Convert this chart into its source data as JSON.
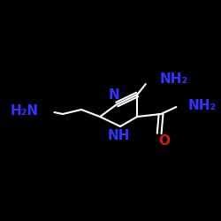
{
  "background_color": "#000000",
  "bond_color": "#ffffff",
  "text_color_blue": "#3333ff",
  "text_color_red": "#cc2200",
  "figsize": [
    2.5,
    2.5
  ],
  "dpi": 100,
  "xlim": [
    0,
    250
  ],
  "ylim": [
    0,
    250
  ]
}
